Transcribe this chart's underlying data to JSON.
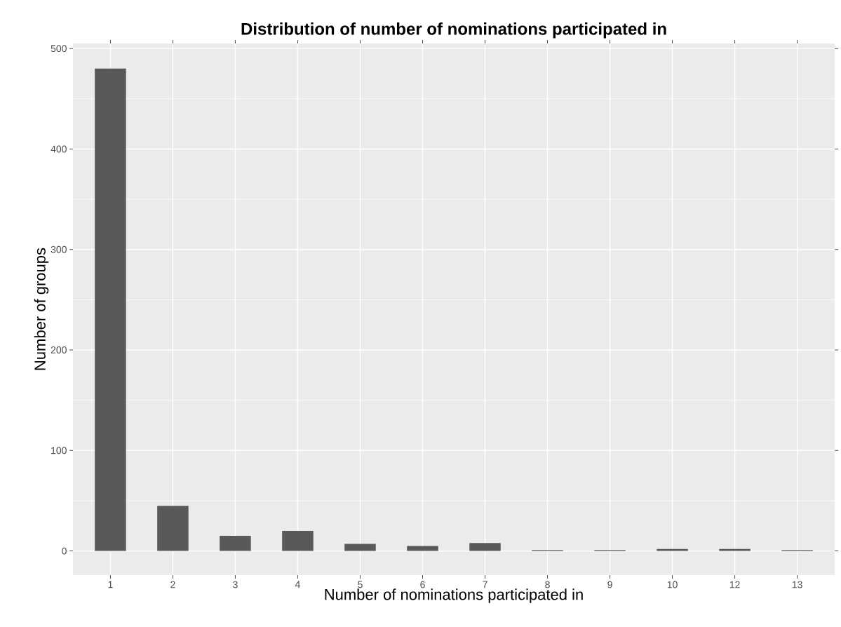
{
  "chart_data": {
    "type": "bar",
    "title": "Distribution of number of nominations participated in",
    "xlabel": "Number of nominations participated in",
    "ylabel": "Number of groups",
    "categories": [
      "1",
      "2",
      "3",
      "4",
      "5",
      "6",
      "7",
      "8",
      "9",
      "10",
      "12",
      "13"
    ],
    "values": [
      480,
      45,
      15,
      20,
      7,
      5,
      8,
      1,
      1,
      2,
      2,
      1
    ],
    "color": "#595959",
    "ylim": [
      -24,
      505
    ],
    "yticks": [
      0,
      100,
      200,
      300,
      400,
      500
    ],
    "grid": true
  }
}
